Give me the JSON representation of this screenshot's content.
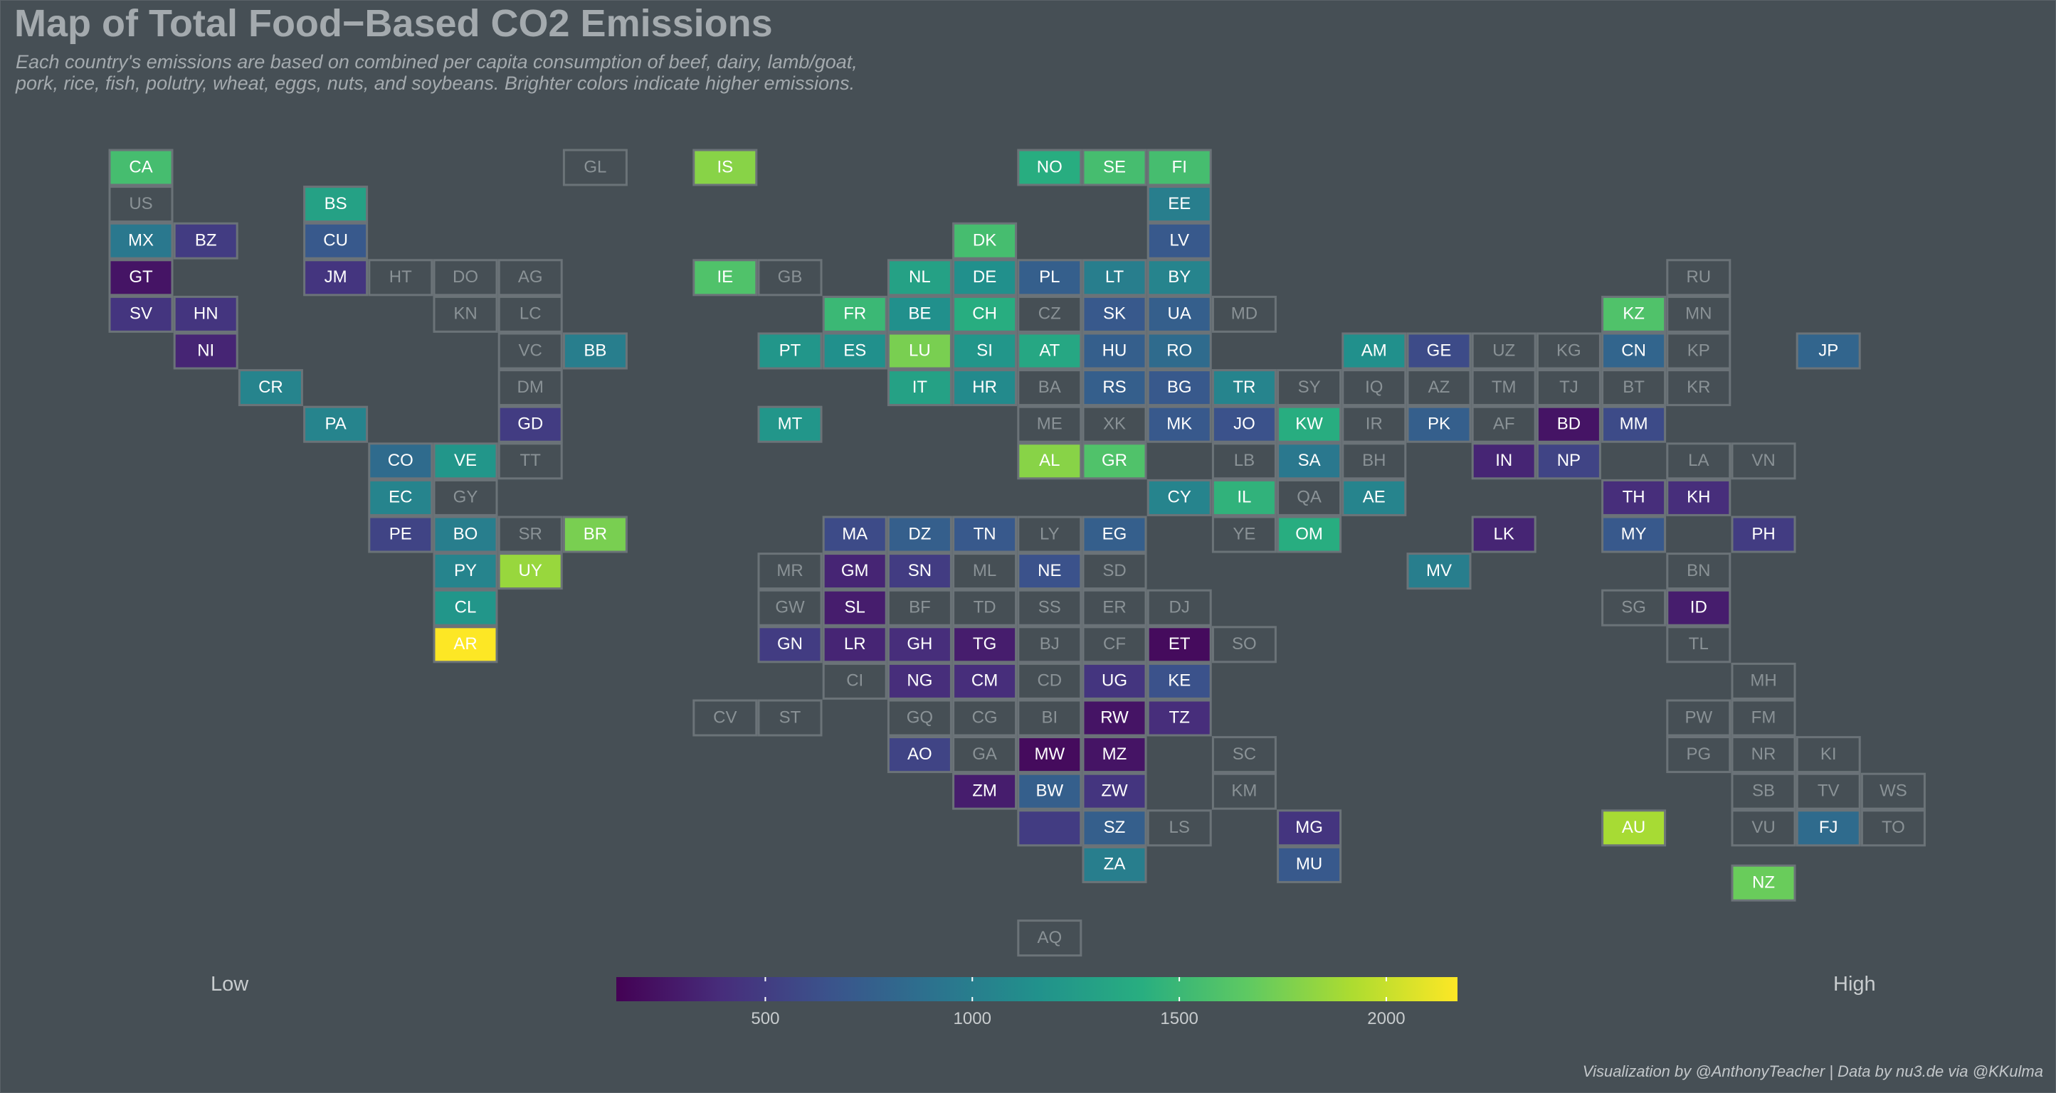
{
  "title": "Map of Total Food−Based CO2 Emissions",
  "subtitle_line1": "Each country's emissions are based on combined per capita consumption of beef, dairy, lamb/goat,",
  "subtitle_line2": "pork, rice, fish, polutry, wheat, eggs, nuts, and soybeans. Brighter colors indicate higher emissions.",
  "legend": {
    "low_label": "Low",
    "high_label": "High",
    "ticks": [
      500,
      1000,
      1500,
      2000
    ]
  },
  "caption": "Visualization by @AnthonyTeacher | Data by nu3.de via @KKulma",
  "chart_data": {
    "type": "heatmap",
    "color_scale": {
      "name": "viridis",
      "min": 140,
      "max": 2172,
      "colors": [
        "#440154",
        "#472d7b",
        "#3b528b",
        "#2c728e",
        "#21918c",
        "#28ae80",
        "#5ec962",
        "#addc30",
        "#fde725"
      ],
      "no_data_color": "#464f55"
    },
    "tiles": [
      {
        "code": "CA",
        "col": 0,
        "row": 0,
        "value": 1550
      },
      {
        "code": "US",
        "col": 0,
        "row": 1,
        "value": null
      },
      {
        "code": "MX",
        "col": 0,
        "row": 2,
        "value": 950
      },
      {
        "code": "BZ",
        "col": 1,
        "row": 2,
        "value": 500
      },
      {
        "code": "GT",
        "col": 0,
        "row": 3,
        "value": 250
      },
      {
        "code": "SV",
        "col": 0,
        "row": 4,
        "value": 450
      },
      {
        "code": "HN",
        "col": 1,
        "row": 4,
        "value": 450
      },
      {
        "code": "NI",
        "col": 1,
        "row": 5,
        "value": 350
      },
      {
        "code": "CR",
        "col": 2,
        "row": 6,
        "value": 1050
      },
      {
        "code": "PA",
        "col": 3,
        "row": 7,
        "value": 1050
      },
      {
        "code": "BS",
        "col": 3,
        "row": 1,
        "value": 1300
      },
      {
        "code": "CU",
        "col": 3,
        "row": 2,
        "value": 700
      },
      {
        "code": "JM",
        "col": 3,
        "row": 3,
        "value": 450
      },
      {
        "code": "HT",
        "col": 4,
        "row": 3,
        "value": null
      },
      {
        "code": "DO",
        "col": 5,
        "row": 3,
        "value": null
      },
      {
        "code": "AG",
        "col": 6,
        "row": 3,
        "value": null
      },
      {
        "code": "KN",
        "col": 5,
        "row": 4,
        "value": null
      },
      {
        "code": "LC",
        "col": 6,
        "row": 4,
        "value": null
      },
      {
        "code": "VC",
        "col": 6,
        "row": 5,
        "value": null
      },
      {
        "code": "BB",
        "col": 7,
        "row": 5,
        "value": 1000
      },
      {
        "code": "DM",
        "col": 6,
        "row": 6,
        "value": null
      },
      {
        "code": "GD",
        "col": 6,
        "row": 7,
        "value": 500
      },
      {
        "code": "TT",
        "col": 6,
        "row": 8,
        "value": null
      },
      {
        "code": "GL",
        "col": 7,
        "row": 0,
        "value": null
      },
      {
        "code": "CO",
        "col": 4,
        "row": 8,
        "value": 850
      },
      {
        "code": "VE",
        "col": 5,
        "row": 8,
        "value": 1200
      },
      {
        "code": "EC",
        "col": 4,
        "row": 9,
        "value": 1050
      },
      {
        "code": "GY",
        "col": 5,
        "row": 9,
        "value": null
      },
      {
        "code": "PE",
        "col": 4,
        "row": 10,
        "value": 550
      },
      {
        "code": "BO",
        "col": 5,
        "row": 10,
        "value": 1000
      },
      {
        "code": "SR",
        "col": 6,
        "row": 10,
        "value": null
      },
      {
        "code": "BR",
        "col": 7,
        "row": 10,
        "value": 1750
      },
      {
        "code": "PY",
        "col": 5,
        "row": 11,
        "value": 1050
      },
      {
        "code": "UY",
        "col": 6,
        "row": 11,
        "value": 1850
      },
      {
        "code": "CL",
        "col": 5,
        "row": 12,
        "value": 1200
      },
      {
        "code": "AR",
        "col": 5,
        "row": 13,
        "value": 2172
      },
      {
        "code": "IS",
        "col": 9,
        "row": 0,
        "value": 1800
      },
      {
        "code": "IE",
        "col": 9,
        "row": 3,
        "value": 1600
      },
      {
        "code": "GB",
        "col": 10,
        "row": 3,
        "value": null
      },
      {
        "code": "CV",
        "col": 9,
        "row": 15,
        "value": null
      },
      {
        "code": "NO",
        "col": 14,
        "row": 0,
        "value": 1400
      },
      {
        "code": "SE",
        "col": 15,
        "row": 0,
        "value": 1550
      },
      {
        "code": "FI",
        "col": 16,
        "row": 0,
        "value": 1550
      },
      {
        "code": "EE",
        "col": 16,
        "row": 1,
        "value": 1000
      },
      {
        "code": "LV",
        "col": 16,
        "row": 2,
        "value": 700
      },
      {
        "code": "DK",
        "col": 13,
        "row": 2,
        "value": 1550
      },
      {
        "code": "NL",
        "col": 12,
        "row": 3,
        "value": 1300
      },
      {
        "code": "DE",
        "col": 13,
        "row": 3,
        "value": 1150
      },
      {
        "code": "PL",
        "col": 14,
        "row": 3,
        "value": 750
      },
      {
        "code": "LT",
        "col": 15,
        "row": 3,
        "value": 1000
      },
      {
        "code": "BY",
        "col": 16,
        "row": 3,
        "value": 1050
      },
      {
        "code": "FR",
        "col": 11,
        "row": 4,
        "value": 1500
      },
      {
        "code": "BE",
        "col": 12,
        "row": 4,
        "value": 1150
      },
      {
        "code": "CH",
        "col": 13,
        "row": 4,
        "value": 1400
      },
      {
        "code": "CZ",
        "col": 14,
        "row": 4,
        "value": null
      },
      {
        "code": "SK",
        "col": 15,
        "row": 4,
        "value": 700
      },
      {
        "code": "UA",
        "col": 16,
        "row": 4,
        "value": 750
      },
      {
        "code": "MD",
        "col": 17,
        "row": 4,
        "value": null
      },
      {
        "code": "PT",
        "col": 10,
        "row": 5,
        "value": 1200
      },
      {
        "code": "ES",
        "col": 11,
        "row": 5,
        "value": 1150
      },
      {
        "code": "LU",
        "col": 12,
        "row": 5,
        "value": 1750
      },
      {
        "code": "SI",
        "col": 13,
        "row": 5,
        "value": 1200
      },
      {
        "code": "AT",
        "col": 14,
        "row": 5,
        "value": 1350
      },
      {
        "code": "HU",
        "col": 15,
        "row": 5,
        "value": 750
      },
      {
        "code": "RO",
        "col": 16,
        "row": 5,
        "value": 850
      },
      {
        "code": "IT",
        "col": 12,
        "row": 6,
        "value": 1300
      },
      {
        "code": "HR",
        "col": 13,
        "row": 6,
        "value": 1100
      },
      {
        "code": "BA",
        "col": 14,
        "row": 6,
        "value": null
      },
      {
        "code": "RS",
        "col": 15,
        "row": 6,
        "value": 750
      },
      {
        "code": "BG",
        "col": 16,
        "row": 6,
        "value": 700
      },
      {
        "code": "TR",
        "col": 17,
        "row": 6,
        "value": 1050
      },
      {
        "code": "MT",
        "col": 10,
        "row": 7,
        "value": 1200
      },
      {
        "code": "ME",
        "col": 14,
        "row": 7,
        "value": null
      },
      {
        "code": "XK",
        "col": 15,
        "row": 7,
        "value": null
      },
      {
        "code": "MK",
        "col": 16,
        "row": 7,
        "value": 700
      },
      {
        "code": "JO",
        "col": 17,
        "row": 7,
        "value": 650
      },
      {
        "code": "KW",
        "col": 18,
        "row": 7,
        "value": 1400
      },
      {
        "code": "AL",
        "col": 14,
        "row": 8,
        "value": 1800
      },
      {
        "code": "GR",
        "col": 15,
        "row": 8,
        "value": 1600
      },
      {
        "code": "LB",
        "col": 17,
        "row": 8,
        "value": null
      },
      {
        "code": "SA",
        "col": 18,
        "row": 8,
        "value": 950
      },
      {
        "code": "BH",
        "col": 19,
        "row": 8,
        "value": null
      },
      {
        "code": "CY",
        "col": 16,
        "row": 9,
        "value": 1050
      },
      {
        "code": "IL",
        "col": 17,
        "row": 9,
        "value": 1450
      },
      {
        "code": "QA",
        "col": 18,
        "row": 9,
        "value": null
      },
      {
        "code": "AE",
        "col": 19,
        "row": 9,
        "value": 1050
      },
      {
        "code": "YE",
        "col": 17,
        "row": 10,
        "value": null
      },
      {
        "code": "OM",
        "col": 18,
        "row": 10,
        "value": 1400
      },
      {
        "code": "MA",
        "col": 11,
        "row": 10,
        "value": 600
      },
      {
        "code": "DZ",
        "col": 12,
        "row": 10,
        "value": 750
      },
      {
        "code": "TN",
        "col": 13,
        "row": 10,
        "value": 700
      },
      {
        "code": "LY",
        "col": 14,
        "row": 10,
        "value": null
      },
      {
        "code": "EG",
        "col": 15,
        "row": 10,
        "value": 750
      },
      {
        "code": "MR",
        "col": 10,
        "row": 11,
        "value": null
      },
      {
        "code": "GM",
        "col": 11,
        "row": 11,
        "value": 350
      },
      {
        "code": "SN",
        "col": 12,
        "row": 11,
        "value": 500
      },
      {
        "code": "ML",
        "col": 13,
        "row": 11,
        "value": null
      },
      {
        "code": "NE",
        "col": 14,
        "row": 11,
        "value": 650
      },
      {
        "code": "SD",
        "col": 15,
        "row": 11,
        "value": null
      },
      {
        "code": "GW",
        "col": 10,
        "row": 12,
        "value": null
      },
      {
        "code": "SL",
        "col": 11,
        "row": 12,
        "value": 300
      },
      {
        "code": "BF",
        "col": 12,
        "row": 12,
        "value": null
      },
      {
        "code": "TD",
        "col": 13,
        "row": 12,
        "value": null
      },
      {
        "code": "SS",
        "col": 14,
        "row": 12,
        "value": null
      },
      {
        "code": "ER",
        "col": 15,
        "row": 12,
        "value": null
      },
      {
        "code": "DJ",
        "col": 16,
        "row": 12,
        "value": null
      },
      {
        "code": "GN",
        "col": 10,
        "row": 13,
        "value": 500
      },
      {
        "code": "LR",
        "col": 11,
        "row": 13,
        "value": 350
      },
      {
        "code": "GH",
        "col": 12,
        "row": 13,
        "value": 400
      },
      {
        "code": "TG",
        "col": 13,
        "row": 13,
        "value": 300
      },
      {
        "code": "BJ",
        "col": 14,
        "row": 13,
        "value": null
      },
      {
        "code": "CF",
        "col": 15,
        "row": 13,
        "value": null
      },
      {
        "code": "ET",
        "col": 16,
        "row": 13,
        "value": 200
      },
      {
        "code": "SO",
        "col": 17,
        "row": 13,
        "value": null
      },
      {
        "code": "CI",
        "col": 11,
        "row": 14,
        "value": null
      },
      {
        "code": "NG",
        "col": 12,
        "row": 14,
        "value": 400
      },
      {
        "code": "CM",
        "col": 13,
        "row": 14,
        "value": 400
      },
      {
        "code": "CD",
        "col": 14,
        "row": 14,
        "value": null
      },
      {
        "code": "UG",
        "col": 15,
        "row": 14,
        "value": 450
      },
      {
        "code": "KE",
        "col": 16,
        "row": 14,
        "value": 650
      },
      {
        "code": "ST",
        "col": 10,
        "row": 15,
        "value": null
      },
      {
        "code": "GQ",
        "col": 12,
        "row": 15,
        "value": null
      },
      {
        "code": "CG",
        "col": 13,
        "row": 15,
        "value": null
      },
      {
        "code": "BI",
        "col": 14,
        "row": 15,
        "value": null
      },
      {
        "code": "RW",
        "col": 15,
        "row": 15,
        "value": 250
      },
      {
        "code": "TZ",
        "col": 16,
        "row": 15,
        "value": 400
      },
      {
        "code": "AO",
        "col": 12,
        "row": 16,
        "value": 550
      },
      {
        "code": "GA",
        "col": 13,
        "row": 16,
        "value": null
      },
      {
        "code": "MW",
        "col": 14,
        "row": 16,
        "value": 200
      },
      {
        "code": "MZ",
        "col": 15,
        "row": 16,
        "value": 250
      },
      {
        "code": "SC",
        "col": 17,
        "row": 16,
        "value": null
      },
      {
        "code": "ZM",
        "col": 13,
        "row": 17,
        "value": 300
      },
      {
        "code": "BW",
        "col": 14,
        "row": 17,
        "value": 750
      },
      {
        "code": "ZW",
        "col": 15,
        "row": 17,
        "value": 450
      },
      {
        "code": "KM",
        "col": 17,
        "row": 17,
        "value": null
      },
      {
        "code": "",
        "col": 14,
        "row": 18,
        "value": 500
      },
      {
        "code": "SZ",
        "col": 15,
        "row": 18,
        "value": 750
      },
      {
        "code": "LS",
        "col": 16,
        "row": 18,
        "value": null
      },
      {
        "code": "MG",
        "col": 18,
        "row": 18,
        "value": 450
      },
      {
        "code": "ZA",
        "col": 15,
        "row": 19,
        "value": 1000
      },
      {
        "code": "MU",
        "col": 18,
        "row": 19,
        "value": 700
      },
      {
        "code": "AQ",
        "col": 14,
        "row": 21,
        "value": null
      },
      {
        "code": "AM",
        "col": 19,
        "row": 5,
        "value": 1150
      },
      {
        "code": "GE",
        "col": 20,
        "row": 5,
        "value": 600
      },
      {
        "code": "UZ",
        "col": 21,
        "row": 5,
        "value": null
      },
      {
        "code": "KG",
        "col": 22,
        "row": 5,
        "value": null
      },
      {
        "code": "CN",
        "col": 23,
        "row": 5,
        "value": 800
      },
      {
        "code": "KP",
        "col": 24,
        "row": 5,
        "value": null
      },
      {
        "code": "JP",
        "col": 26,
        "row": 5,
        "value": 800
      },
      {
        "code": "IQ",
        "col": 19,
        "row": 6,
        "value": null
      },
      {
        "code": "AZ",
        "col": 20,
        "row": 6,
        "value": null
      },
      {
        "code": "TM",
        "col": 21,
        "row": 6,
        "value": null
      },
      {
        "code": "TJ",
        "col": 22,
        "row": 6,
        "value": null
      },
      {
        "code": "BT",
        "col": 23,
        "row": 6,
        "value": null
      },
      {
        "code": "KR",
        "col": 24,
        "row": 6,
        "value": null
      },
      {
        "code": "IR",
        "col": 19,
        "row": 7,
        "value": null
      },
      {
        "code": "PK",
        "col": 20,
        "row": 7,
        "value": 750
      },
      {
        "code": "AF",
        "col": 21,
        "row": 7,
        "value": null
      },
      {
        "code": "BD",
        "col": 22,
        "row": 7,
        "value": 250
      },
      {
        "code": "MM",
        "col": 23,
        "row": 7,
        "value": 600
      },
      {
        "code": "IN",
        "col": 21,
        "row": 8,
        "value": 350
      },
      {
        "code": "NP",
        "col": 22,
        "row": 8,
        "value": 550
      },
      {
        "code": "LA",
        "col": 24,
        "row": 8,
        "value": null
      },
      {
        "code": "VN",
        "col": 25,
        "row": 8,
        "value": null
      },
      {
        "code": "TH",
        "col": 23,
        "row": 9,
        "value": 400
      },
      {
        "code": "KH",
        "col": 24,
        "row": 9,
        "value": 400
      },
      {
        "code": "LK",
        "col": 21,
        "row": 10,
        "value": 350
      },
      {
        "code": "MY",
        "col": 23,
        "row": 10,
        "value": 700
      },
      {
        "code": "PH",
        "col": 25,
        "row": 10,
        "value": 500
      },
      {
        "code": "MV",
        "col": 20,
        "row": 11,
        "value": 1000
      },
      {
        "code": "BN",
        "col": 24,
        "row": 11,
        "value": null
      },
      {
        "code": "SG",
        "col": 23,
        "row": 12,
        "value": null
      },
      {
        "code": "ID",
        "col": 24,
        "row": 12,
        "value": 300
      },
      {
        "code": "TL",
        "col": 24,
        "row": 13,
        "value": null
      },
      {
        "code": "MH",
        "col": 25,
        "row": 14,
        "value": null
      },
      {
        "code": "PW",
        "col": 24,
        "row": 15,
        "value": null
      },
      {
        "code": "FM",
        "col": 25,
        "row": 15,
        "value": null
      },
      {
        "code": "PG",
        "col": 24,
        "row": 16,
        "value": null
      },
      {
        "code": "NR",
        "col": 25,
        "row": 16,
        "value": null
      },
      {
        "code": "KI",
        "col": 26,
        "row": 16,
        "value": null
      },
      {
        "code": "SB",
        "col": 25,
        "row": 17,
        "value": null
      },
      {
        "code": "TV",
        "col": 26,
        "row": 17,
        "value": null
      },
      {
        "code": "WS",
        "col": 27,
        "row": 17,
        "value": null
      },
      {
        "code": "AU",
        "col": 23,
        "row": 18,
        "value": 1900
      },
      {
        "code": "VU",
        "col": 25,
        "row": 18,
        "value": null
      },
      {
        "code": "FJ",
        "col": 26,
        "row": 18,
        "value": 850
      },
      {
        "code": "TO",
        "col": 27,
        "row": 18,
        "value": null
      },
      {
        "code": "NZ",
        "col": 25,
        "row": 19.5,
        "value": 1700
      },
      {
        "code": "KZ",
        "col": 23,
        "row": 4,
        "value": 1600
      },
      {
        "code": "RU",
        "col": 24,
        "row": 3,
        "value": null
      },
      {
        "code": "MN",
        "col": 24,
        "row": 4,
        "value": null
      },
      {
        "code": "SY",
        "col": 18,
        "row": 6,
        "value": null
      }
    ]
  }
}
